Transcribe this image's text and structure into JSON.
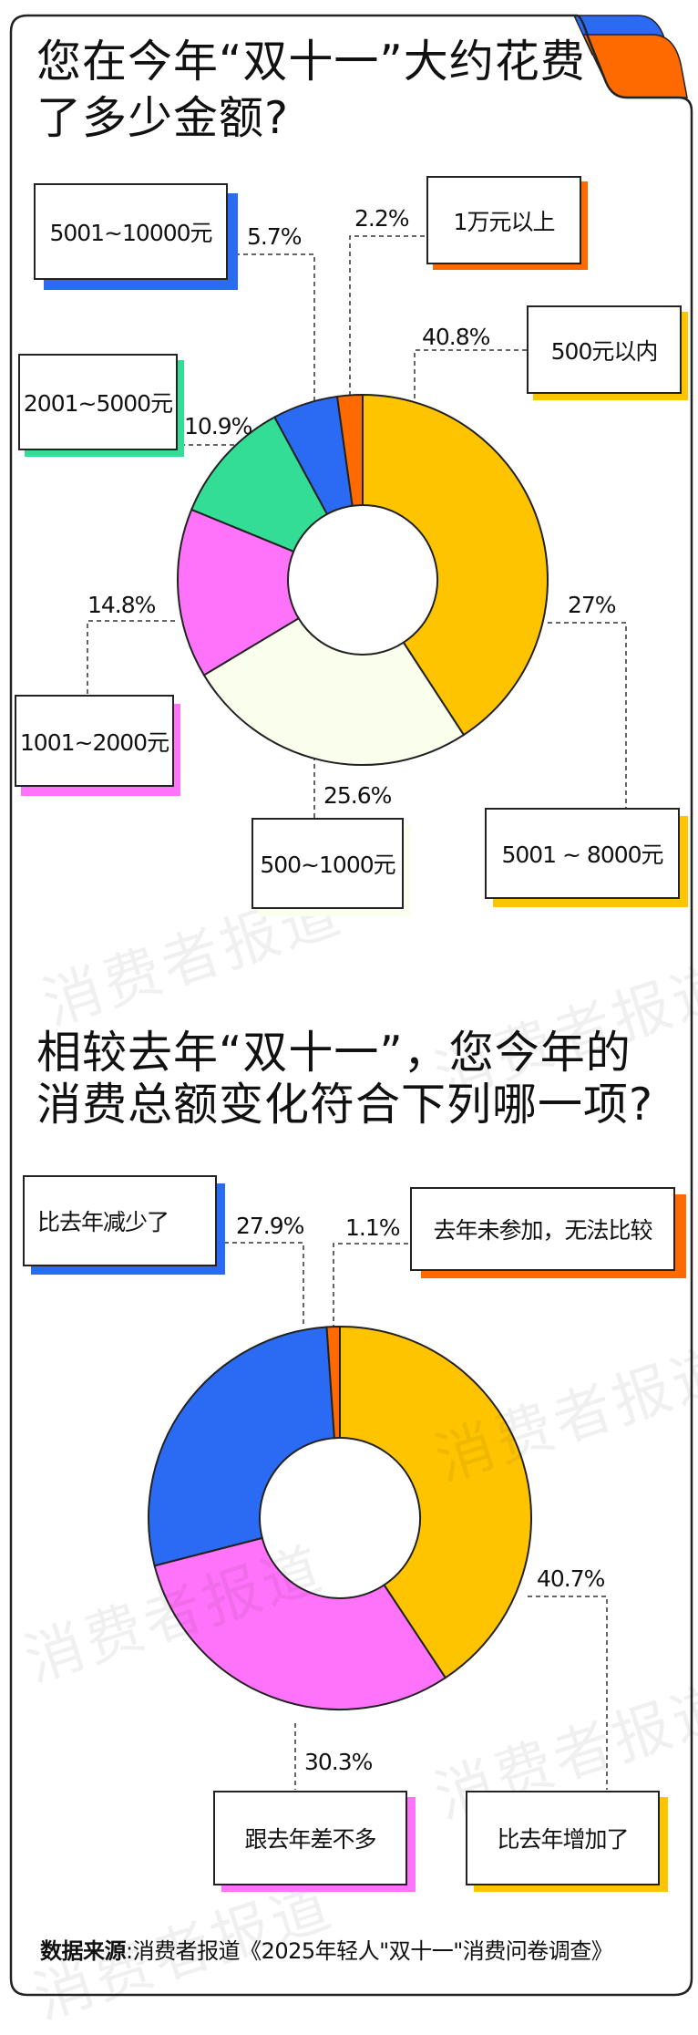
{
  "watermark": "消费者报道",
  "colors": {
    "yellow": "#FFC400",
    "cream": "#F9FFEC",
    "pink": "#FF73FA",
    "green": "#33DD95",
    "blue": "#2B6BF3",
    "orange": "#FF6A00"
  },
  "footer": {
    "label": "数据来源",
    "text": ":消费者报道《2025年轻人\"双十一\"消费问卷调查》"
  },
  "chart_data": [
    {
      "type": "pie",
      "title_lines": [
        "您在今年“双十一”大约花费",
        "了多少金额?"
      ],
      "slices": [
        {
          "label": "500元以内",
          "value": 40.8,
          "display": "40.8%",
          "color": "#FFC400"
        },
        {
          "label": "500~1000元",
          "value": 25.6,
          "display": "25.6%",
          "color": "#F9FFEC"
        },
        {
          "label": "1001~2000元",
          "value": 14.8,
          "display": "14.8%",
          "color": "#FF73FA"
        },
        {
          "label": "2001~5000元",
          "value": 10.9,
          "display": "10.9%",
          "color": "#33DD95"
        },
        {
          "label": "5001~10000元",
          "value": 5.7,
          "display": "5.7%",
          "color": "#2B6BF3"
        },
        {
          "label": "1万元以上",
          "value": 2.2,
          "display": "2.2%",
          "color": "#FF6A00"
        }
      ],
      "annotation": {
        "label": "5001 ~ 8000元",
        "display": "27%"
      }
    },
    {
      "type": "pie",
      "title_lines": [
        "相较去年“双十一”，您今年的",
        "消费总额变化符合下列哪一项?"
      ],
      "slices": [
        {
          "label": "比去年增加了",
          "value": 40.7,
          "display": "40.7%",
          "color": "#FFC400"
        },
        {
          "label": "跟去年差不多",
          "value": 30.3,
          "display": "30.3%",
          "color": "#FF73FA"
        },
        {
          "label": "比去年减少了",
          "value": 27.9,
          "display": "27.9%",
          "color": "#2B6BF3"
        },
        {
          "label": "去年未参加，无法比较",
          "value": 1.1,
          "display": "1.1%",
          "color": "#FF6A00"
        }
      ]
    }
  ]
}
